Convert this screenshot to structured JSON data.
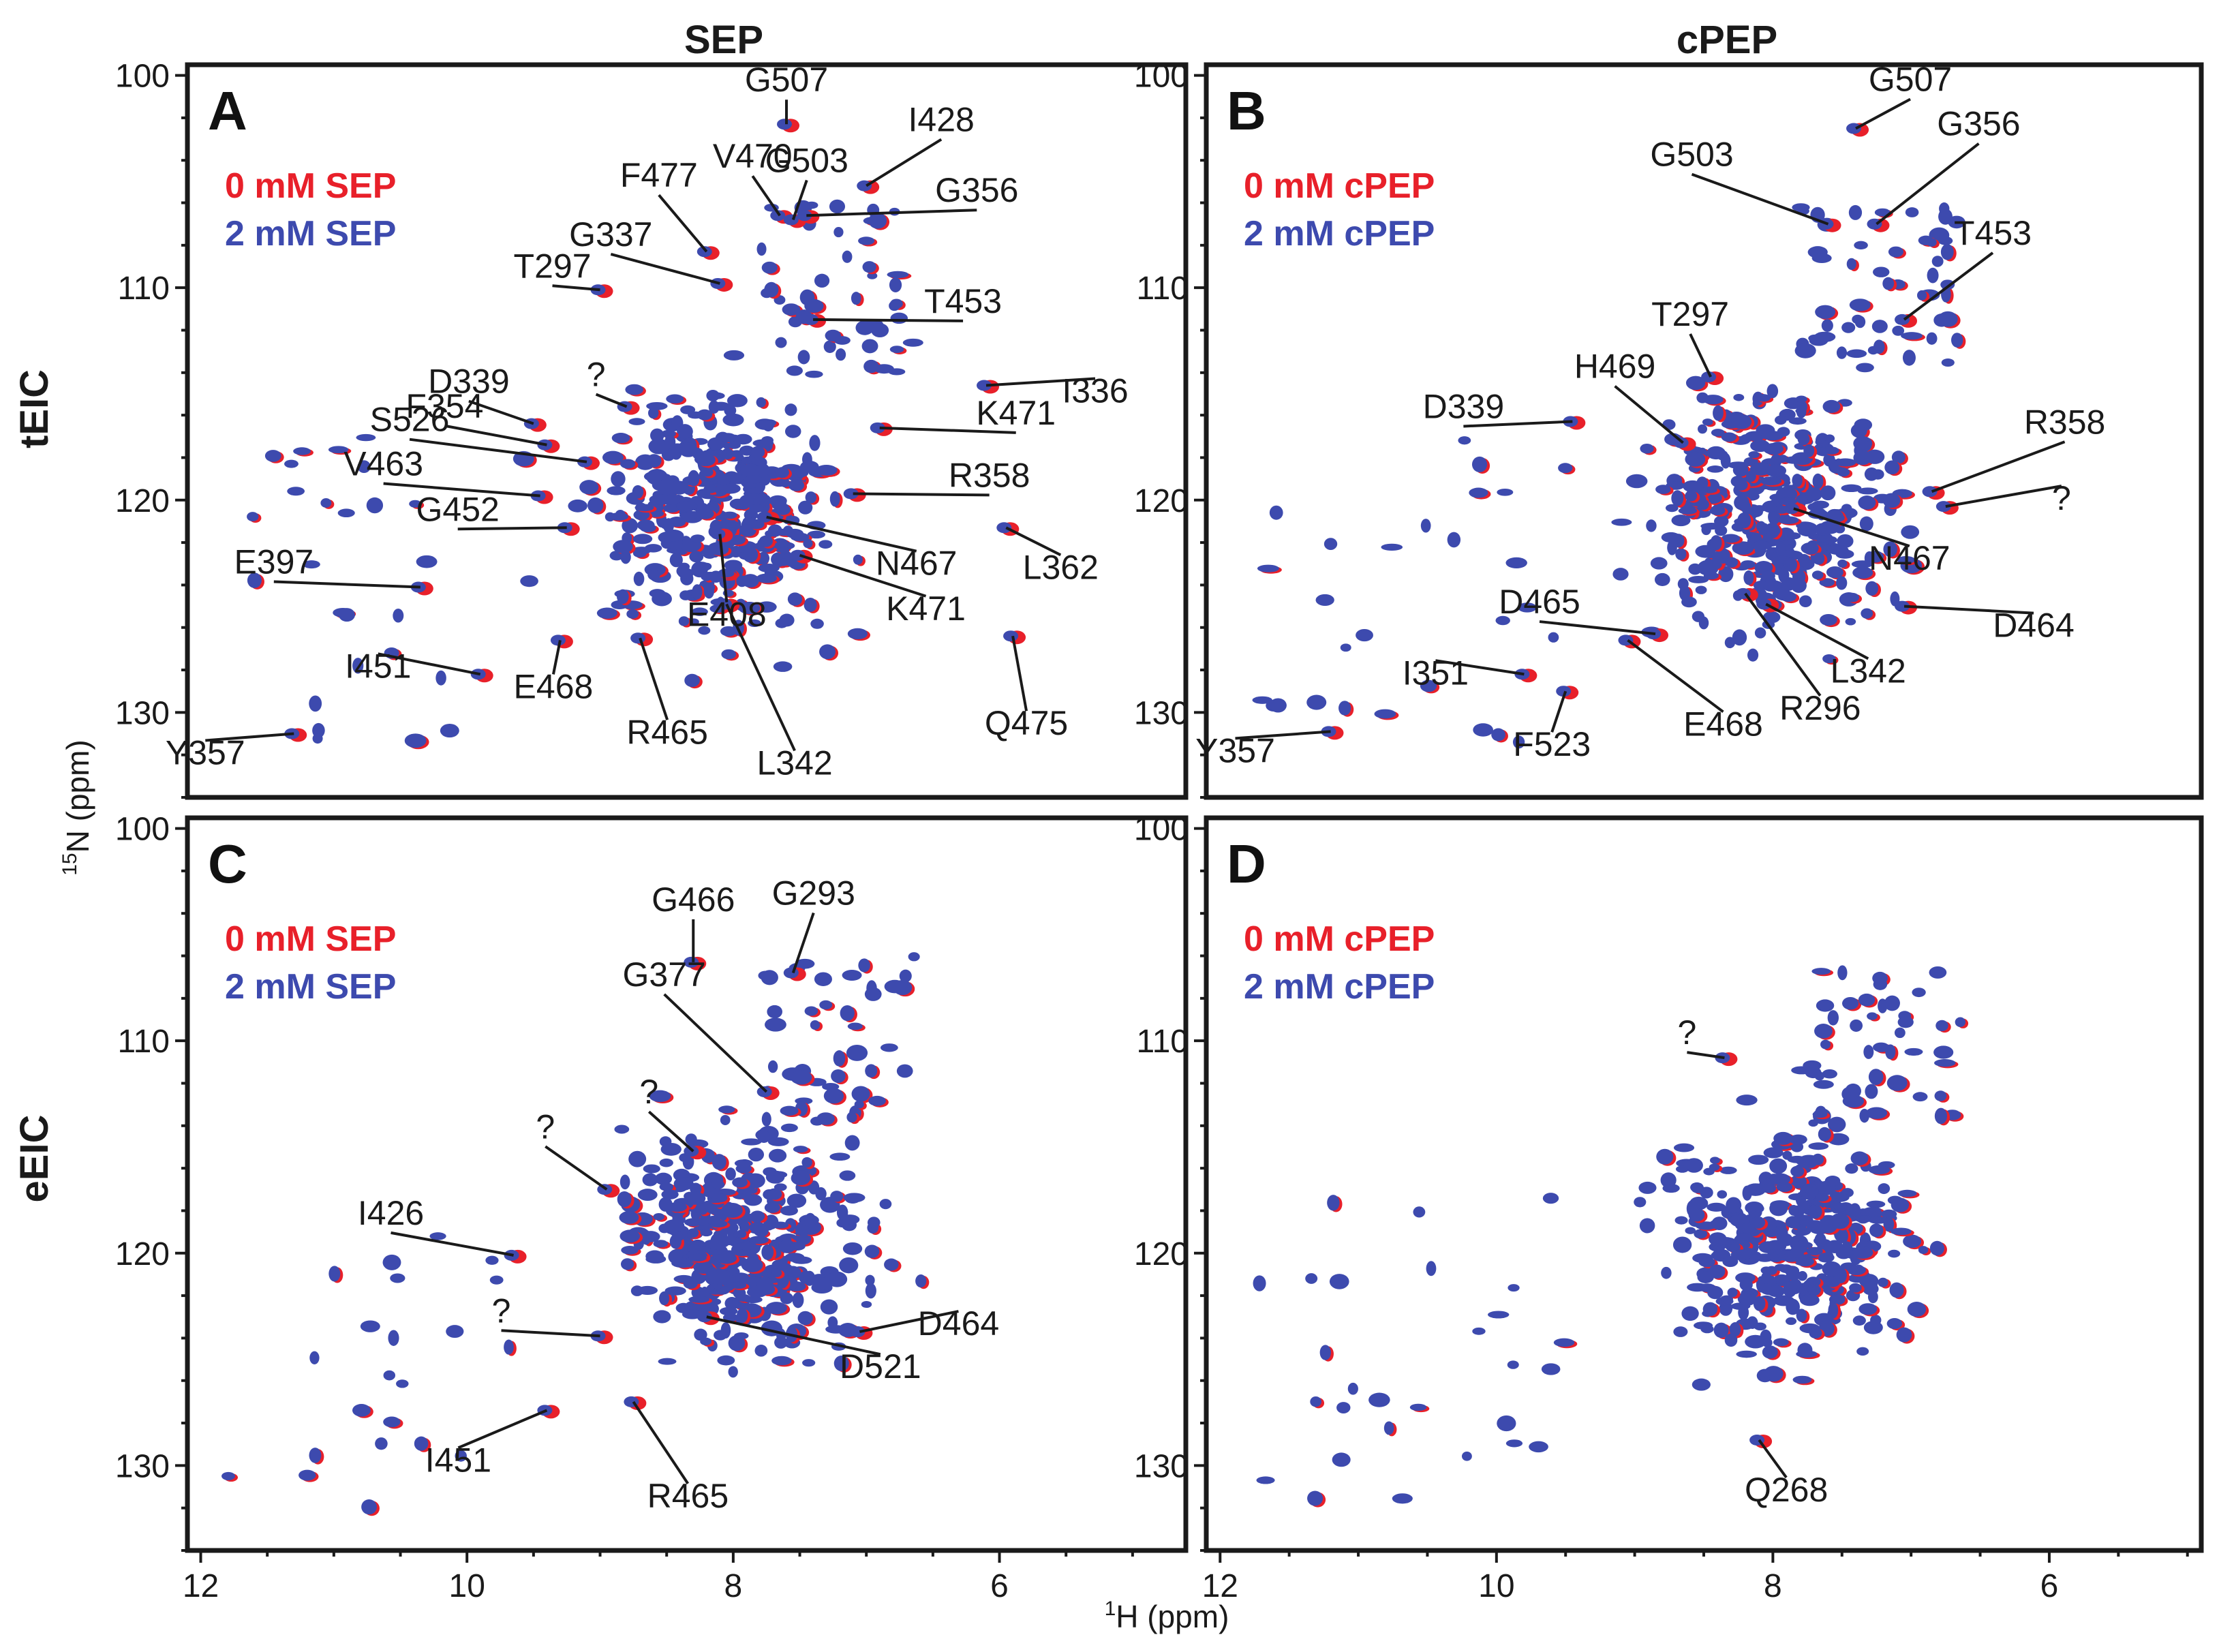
{
  "column_titles": [
    "SEP",
    "cPEP"
  ],
  "row_titles": [
    "tEIC",
    "eEIC"
  ],
  "x_axis_label_main": "H (ppm)",
  "x_axis_label_sup": "1",
  "y_axis_label_main": "N (ppm)",
  "y_axis_label_sup": "15",
  "colors": {
    "red": "#e8202a",
    "blue": "#3d4aae"
  },
  "chart_data": [
    {
      "type": "scatter",
      "panel": "A",
      "title": "SEP",
      "row": "tEIC",
      "xlabel": "1H (ppm)",
      "ylabel": "15N (ppm)",
      "xlim": [
        12.1,
        4.6
      ],
      "ylim": [
        99.5,
        134
      ],
      "xticks": [
        12,
        10,
        8,
        6
      ],
      "yticks": [
        100,
        110,
        120,
        130
      ],
      "legend": [
        {
          "label": "0 mM SEP",
          "color": "#e8202a"
        },
        {
          "label": "2 mM SEP",
          "color": "#3d4aae"
        }
      ],
      "annotations": [
        {
          "label": "G507",
          "x": 7.6,
          "y": 102.3
        },
        {
          "label": "V470",
          "x": 7.65,
          "y": 106.6
        },
        {
          "label": "G503",
          "x": 7.55,
          "y": 106.8
        },
        {
          "label": "I428",
          "x": 7.0,
          "y": 105.2
        },
        {
          "label": "G356",
          "x": 7.45,
          "y": 106.6
        },
        {
          "label": "F477",
          "x": 8.2,
          "y": 108.3
        },
        {
          "label": "G337",
          "x": 8.1,
          "y": 109.8
        },
        {
          "label": "T297",
          "x": 9.0,
          "y": 110.1
        },
        {
          "label": "T453",
          "x": 7.4,
          "y": 111.5
        },
        {
          "label": "I336",
          "x": 6.1,
          "y": 114.6
        },
        {
          "label": "?",
          "x": 8.8,
          "y": 115.6
        },
        {
          "label": "D339",
          "x": 9.5,
          "y": 116.4
        },
        {
          "label": "F354",
          "x": 9.4,
          "y": 117.4
        },
        {
          "label": "S526",
          "x": 9.1,
          "y": 118.2
        },
        {
          "label": "K471",
          "x": 6.9,
          "y": 116.6
        },
        {
          "label": "V463",
          "x": 9.45,
          "y": 119.8
        },
        {
          "label": "R358",
          "x": 7.1,
          "y": 119.7
        },
        {
          "label": "G452",
          "x": 9.25,
          "y": 121.3
        },
        {
          "label": "E397",
          "x": 10.35,
          "y": 124.1
        },
        {
          "label": "L362",
          "x": 5.95,
          "y": 121.3
        },
        {
          "label": "N467",
          "x": 7.75,
          "y": 120.8
        },
        {
          "label": "K471",
          "x": 7.5,
          "y": 122.6
        },
        {
          "label": "E408",
          "x": 8.1,
          "y": 121.6
        },
        {
          "label": "L342",
          "x": 8.05,
          "y": 124.9
        },
        {
          "label": "I451",
          "x": 9.9,
          "y": 128.2
        },
        {
          "label": "E468",
          "x": 9.3,
          "y": 126.6
        },
        {
          "label": "R465",
          "x": 8.7,
          "y": 126.5
        },
        {
          "label": "Q475",
          "x": 5.9,
          "y": 126.4
        },
        {
          "label": "Y357",
          "x": 11.3,
          "y": 131.0
        }
      ]
    },
    {
      "type": "scatter",
      "panel": "B",
      "title": "cPEP",
      "row": "tEIC",
      "xlabel": "1H (ppm)",
      "ylabel": "15N (ppm)",
      "xlim": [
        12.1,
        4.9
      ],
      "ylim": [
        99.5,
        134
      ],
      "xticks": [
        12,
        10,
        8,
        6
      ],
      "yticks": [
        100,
        110,
        120,
        130
      ],
      "legend": [
        {
          "label": "0 mM cPEP",
          "color": "#e8202a"
        },
        {
          "label": "2 mM cPEP",
          "color": "#3d4aae"
        }
      ],
      "annotations": [
        {
          "label": "G507",
          "x": 7.4,
          "y": 102.5
        },
        {
          "label": "G503",
          "x": 7.6,
          "y": 107.0
        },
        {
          "label": "G356",
          "x": 7.25,
          "y": 107.0
        },
        {
          "label": "T453",
          "x": 7.05,
          "y": 111.5
        },
        {
          "label": "T297",
          "x": 8.45,
          "y": 114.2
        },
        {
          "label": "H469",
          "x": 8.65,
          "y": 117.3
        },
        {
          "label": "D339",
          "x": 9.45,
          "y": 116.3
        },
        {
          "label": "R358",
          "x": 6.85,
          "y": 119.6
        },
        {
          "label": "?",
          "x": 6.75,
          "y": 120.3
        },
        {
          "label": "N467",
          "x": 7.85,
          "y": 120.4
        },
        {
          "label": "D464",
          "x": 7.05,
          "y": 125.0
        },
        {
          "label": "D465",
          "x": 8.85,
          "y": 126.3
        },
        {
          "label": "E468",
          "x": 9.05,
          "y": 126.6
        },
        {
          "label": "R296",
          "x": 8.2,
          "y": 124.4
        },
        {
          "label": "L342",
          "x": 8.05,
          "y": 124.9
        },
        {
          "label": "I351",
          "x": 9.8,
          "y": 128.2
        },
        {
          "label": "F523",
          "x": 9.5,
          "y": 129.0
        },
        {
          "label": "Y357",
          "x": 11.2,
          "y": 130.9
        }
      ]
    },
    {
      "type": "scatter",
      "panel": "C",
      "title": "SEP",
      "row": "eEIC",
      "xlabel": "1H (ppm)",
      "ylabel": "15N (ppm)",
      "xlim": [
        12.1,
        4.6
      ],
      "ylim": [
        99.5,
        134
      ],
      "xticks": [
        12,
        10,
        8,
        6
      ],
      "yticks": [
        100,
        110,
        120,
        130
      ],
      "legend": [
        {
          "label": "0 mM SEP",
          "color": "#e8202a"
        },
        {
          "label": "2 mM SEP",
          "color": "#3d4aae"
        }
      ],
      "annotations": [
        {
          "label": "G466",
          "x": 8.3,
          "y": 106.3
        },
        {
          "label": "G293",
          "x": 7.55,
          "y": 106.8
        },
        {
          "label": "G377",
          "x": 7.75,
          "y": 112.4
        },
        {
          "label": "?",
          "x": 8.3,
          "y": 115.2
        },
        {
          "label": "?",
          "x": 8.95,
          "y": 117.0
        },
        {
          "label": "I426",
          "x": 9.65,
          "y": 120.1
        },
        {
          "label": "?",
          "x": 9.0,
          "y": 123.9
        },
        {
          "label": "D464",
          "x": 7.05,
          "y": 123.7
        },
        {
          "label": "D521",
          "x": 8.2,
          "y": 123.0
        },
        {
          "label": "I451",
          "x": 9.4,
          "y": 127.4
        },
        {
          "label": "R465",
          "x": 8.75,
          "y": 127.0
        }
      ]
    },
    {
      "type": "scatter",
      "panel": "D",
      "title": "cPEP",
      "row": "eEIC",
      "xlabel": "1H (ppm)",
      "ylabel": "15N (ppm)",
      "xlim": [
        12.1,
        4.9
      ],
      "ylim": [
        99.5,
        134
      ],
      "xticks": [
        12,
        10,
        8,
        6
      ],
      "yticks": [
        100,
        110,
        120,
        130
      ],
      "legend": [
        {
          "label": "0 mM cPEP",
          "color": "#e8202a"
        },
        {
          "label": "2 mM cPEP",
          "color": "#3d4aae"
        }
      ],
      "annotations": [
        {
          "label": "?",
          "x": 8.35,
          "y": 110.8
        },
        {
          "label": "Q268",
          "x": 8.1,
          "y": 128.8
        }
      ]
    }
  ]
}
